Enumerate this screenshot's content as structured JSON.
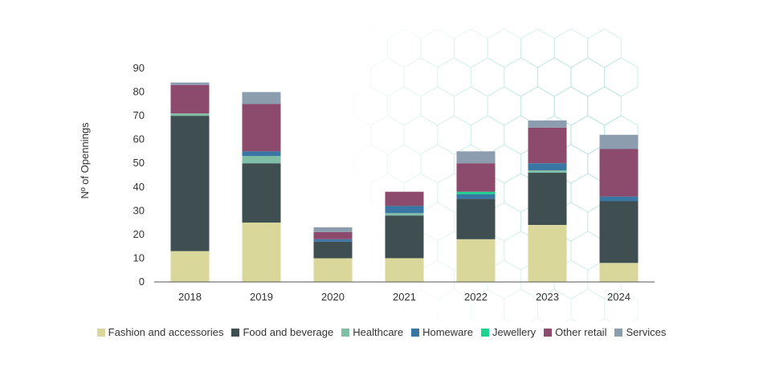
{
  "chart_data": {
    "type": "bar",
    "stacked": true,
    "categories": [
      "2018",
      "2019",
      "2020",
      "2021",
      "2022",
      "2023",
      "2024"
    ],
    "ylabel": "Nº of Opennings",
    "xlabel": "",
    "ylim": [
      0,
      90
    ],
    "yticks": [
      0,
      10,
      20,
      30,
      40,
      50,
      60,
      70,
      80,
      90
    ],
    "grid": false,
    "legend_position": "bottom",
    "series": [
      {
        "name": "Fashion and accessories",
        "color": "#d9d79a",
        "values": [
          13,
          25,
          10,
          10,
          18,
          24,
          8
        ]
      },
      {
        "name": "Food and beverage",
        "color": "#3f4f51",
        "values": [
          57,
          25,
          7,
          18,
          17,
          22,
          26
        ]
      },
      {
        "name": "Healthcare",
        "color": "#7fbfa6",
        "values": [
          1,
          3,
          0,
          1,
          0,
          1,
          0
        ]
      },
      {
        "name": "Homeware",
        "color": "#3a76a3",
        "values": [
          0,
          2,
          1,
          3,
          2,
          3,
          2
        ]
      },
      {
        "name": "Jewellery",
        "color": "#1ed38f",
        "values": [
          0,
          0,
          0,
          0,
          1,
          0,
          0
        ]
      },
      {
        "name": "Other retail",
        "color": "#8c4a6c",
        "values": [
          12,
          20,
          3,
          6,
          12,
          15,
          20
        ]
      },
      {
        "name": "Services",
        "color": "#8c9daf",
        "values": [
          1,
          5,
          2,
          0,
          5,
          3,
          6
        ]
      }
    ]
  }
}
